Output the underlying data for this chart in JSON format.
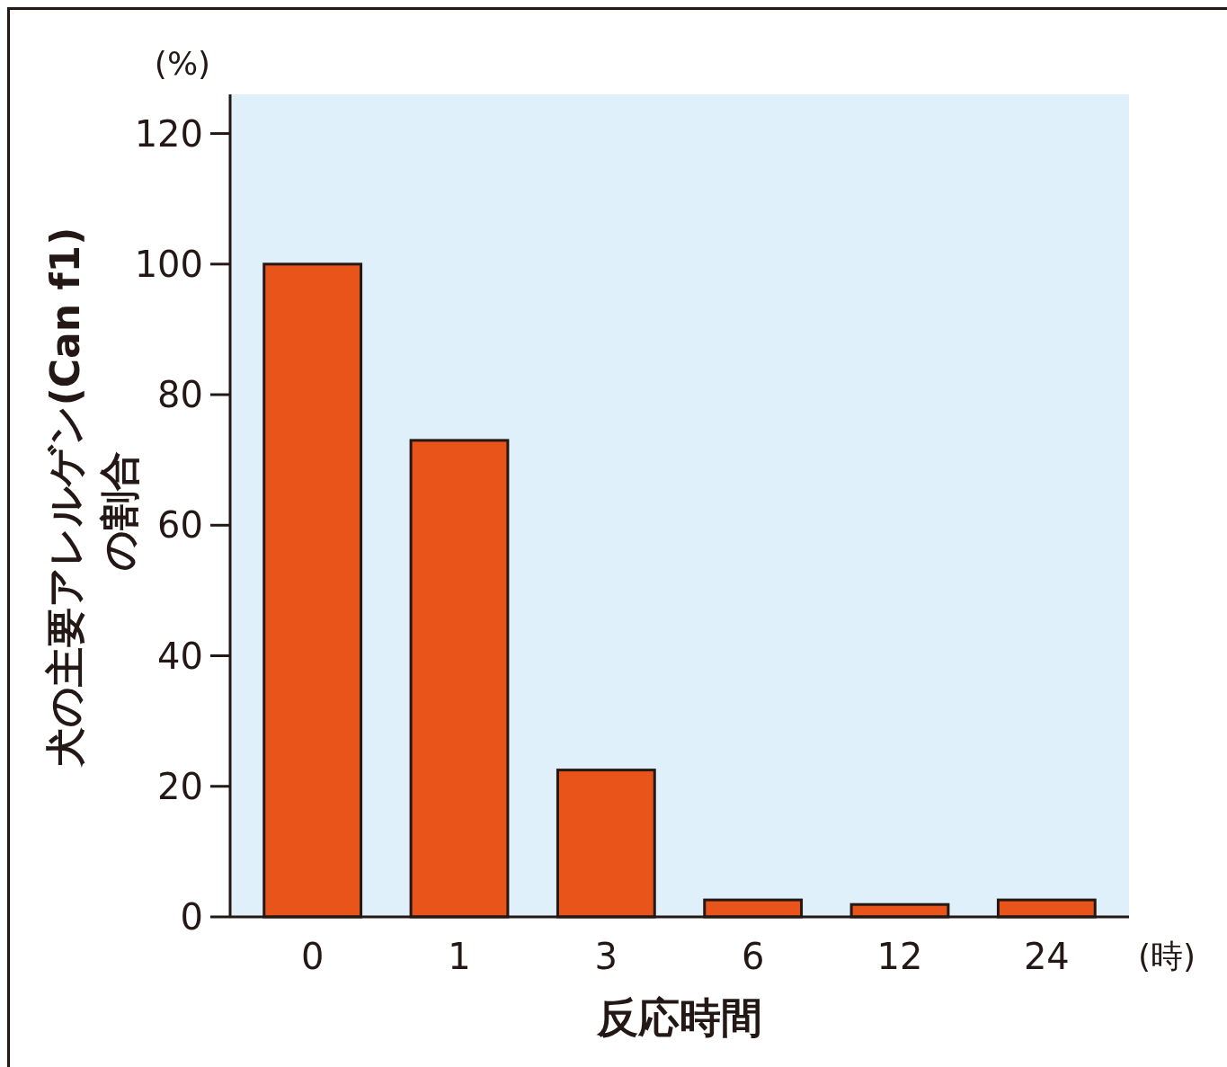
{
  "chart_data": {
    "type": "bar",
    "categories": [
      "0",
      "1",
      "3",
      "6",
      "12",
      "24"
    ],
    "values": [
      100,
      73,
      22.5,
      2.6,
      1.9,
      2.6
    ],
    "color": "#e8541a",
    "ylim": [
      0,
      126
    ],
    "yticks": [
      0,
      20,
      40,
      60,
      80,
      100,
      120
    ],
    "xlabel": "反応時間",
    "ylabel": "犬の主要アレルゲン(Can f1)\nの割合",
    "annotations": [
      "(%)",
      "(時)"
    ],
    "grid": false
  }
}
